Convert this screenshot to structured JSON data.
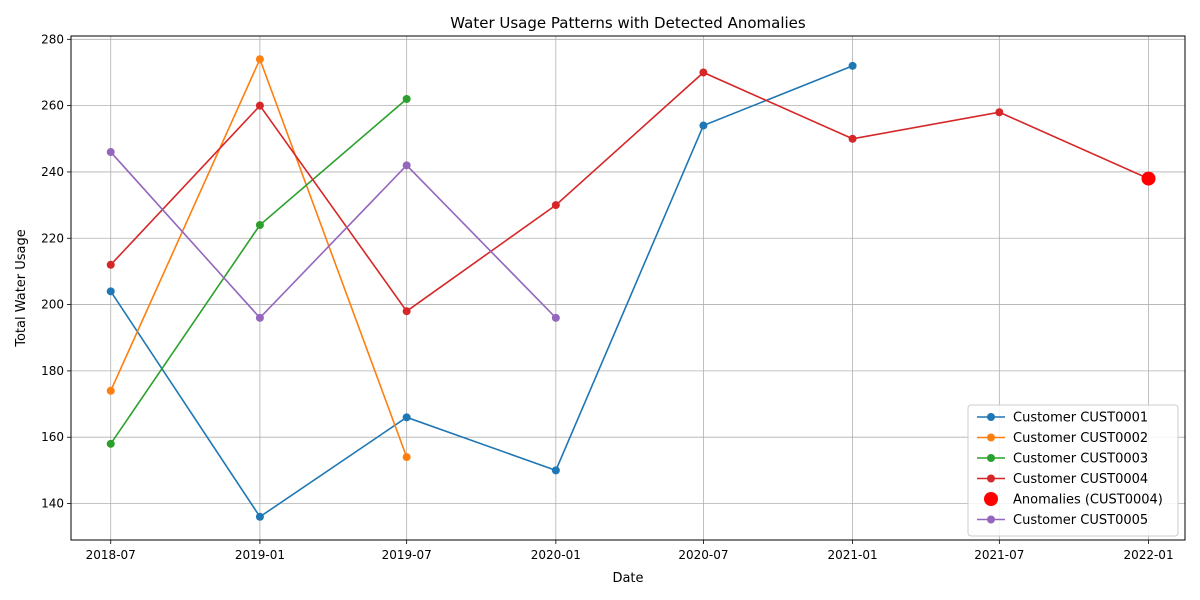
{
  "chart_data": {
    "type": "line",
    "title": "Water Usage Patterns with Detected Anomalies",
    "xlabel": "Date",
    "ylabel": "Total Water Usage",
    "xlim": [
      "2018-05-13",
      "2022-02-15"
    ],
    "ylim": [
      129,
      281
    ],
    "x_ticks": [
      "2018-07",
      "2019-01",
      "2019-07",
      "2020-01",
      "2020-07",
      "2021-01",
      "2021-07",
      "2022-01"
    ],
    "y_ticks": [
      140,
      160,
      180,
      200,
      220,
      240,
      260,
      280
    ],
    "grid": true,
    "legend_position": "lower-right",
    "series": [
      {
        "name": "Customer CUST0001",
        "color": "#1f77b4",
        "marker": "circle",
        "x": [
          "2018-07-01",
          "2019-01-01",
          "2019-07-01",
          "2020-01-01",
          "2020-07-01",
          "2021-01-01"
        ],
        "values": [
          204,
          136,
          166,
          150,
          254,
          272
        ]
      },
      {
        "name": "Customer CUST0002",
        "color": "#ff7f0e",
        "marker": "circle",
        "x": [
          "2018-07-01",
          "2019-01-01",
          "2019-07-01"
        ],
        "values": [
          174,
          274,
          154
        ]
      },
      {
        "name": "Customer CUST0003",
        "color": "#2ca02c",
        "marker": "circle",
        "x": [
          "2018-07-01",
          "2019-01-01",
          "2019-07-01"
        ],
        "values": [
          158,
          224,
          262
        ]
      },
      {
        "name": "Customer CUST0004",
        "color": "#d62728",
        "marker": "circle",
        "x": [
          "2018-07-01",
          "2019-01-01",
          "2019-07-01",
          "2020-01-01",
          "2020-07-01",
          "2021-01-01",
          "2021-07-01",
          "2022-01-01"
        ],
        "values": [
          212,
          260,
          198,
          230,
          270,
          250,
          258,
          238
        ]
      },
      {
        "name": "Anomalies (CUST0004)",
        "color": "#ff0000",
        "marker": "big-circle",
        "scatter": true,
        "x": [
          "2022-01-01"
        ],
        "values": [
          238
        ]
      },
      {
        "name": "Customer CUST0005",
        "color": "#9467bd",
        "marker": "circle",
        "x": [
          "2018-07-01",
          "2019-01-01",
          "2019-07-01",
          "2020-01-01"
        ],
        "values": [
          246,
          196,
          242,
          196
        ]
      }
    ]
  }
}
